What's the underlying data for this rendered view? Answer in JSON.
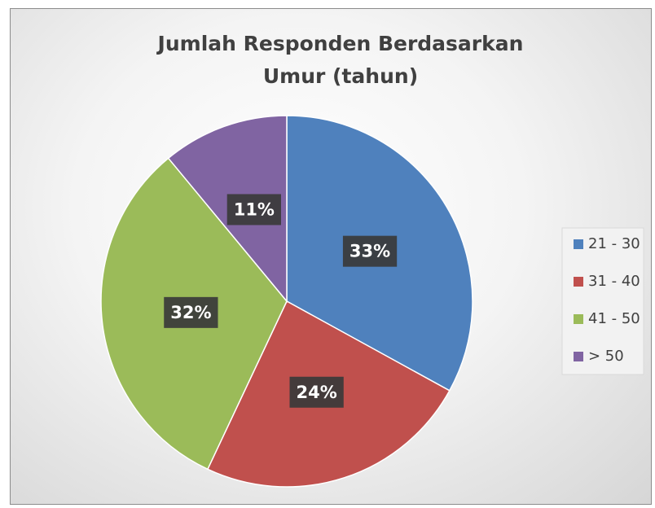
{
  "chart_data": {
    "type": "pie",
    "title": "Jumlah Responden Berdasarkan Umur (tahun)",
    "categories": [
      "21 - 30",
      "31 - 40",
      "41 - 50",
      "> 50"
    ],
    "values": [
      33,
      24,
      32,
      11
    ],
    "value_labels": [
      "33%",
      "24%",
      "32%",
      "11%"
    ],
    "colors": [
      "#4f81bd",
      "#c0504d",
      "#9bbb59",
      "#8064a2"
    ],
    "legend": "right"
  }
}
